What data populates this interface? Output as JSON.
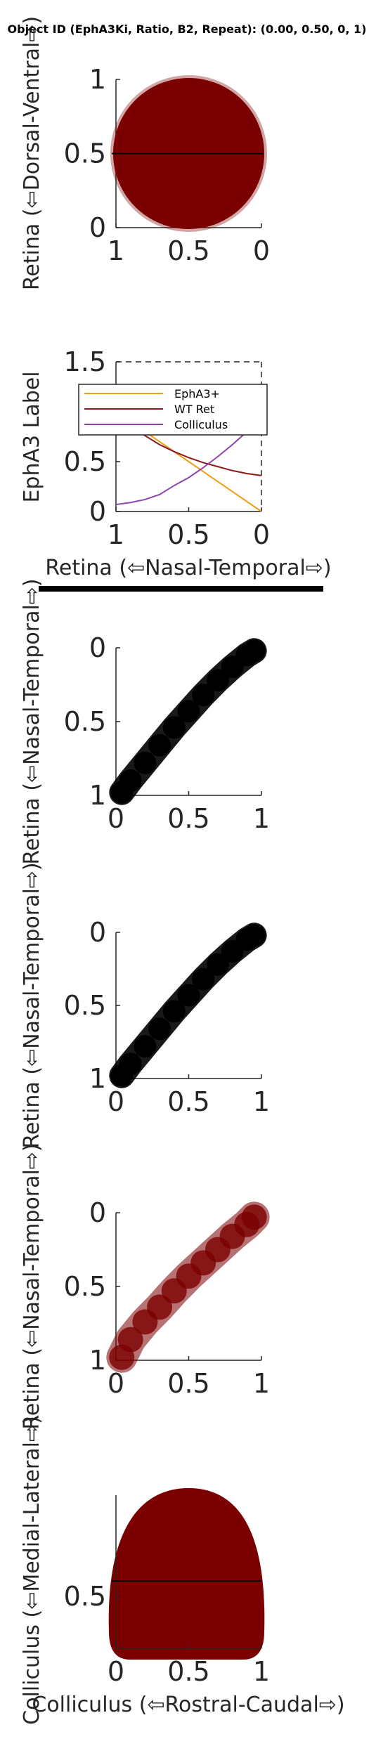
{
  "figure": {
    "title": "Object ID (EphA3Ki, Ratio, B2, Repeat): (0.00, 0.50, 0, 1)"
  },
  "colors": {
    "dark_red": "#7b0000",
    "epha3_plus": "#f39c12",
    "wt_ret": "#8b1a1a",
    "colliculus": "#8e44ad",
    "black": "#000000"
  },
  "chart_data": [
    {
      "id": "retina-field",
      "type": "scatter",
      "title": "",
      "xlabel": "",
      "ylabel": "Retina (⇦Dorsal-Ventral⇨)",
      "xlim": [
        1,
        0
      ],
      "ylim": [
        0,
        1
      ],
      "xticks": [
        "1",
        "0.5",
        "0"
      ],
      "yticks": [
        "1",
        "0.5",
        "0"
      ],
      "shape": "filled disc centred at (0.5, 0.5), radius 0.5",
      "line": {
        "y": 0.5,
        "x": [
          1,
          0
        ]
      }
    },
    {
      "id": "epha3-labels",
      "type": "line",
      "xlabel": "Retina (⇦Nasal-Temporal⇨)",
      "ylabel": "EphA3 Label",
      "xlim": [
        1,
        0
      ],
      "ylim": [
        0,
        1.5
      ],
      "xticks": [
        "1",
        "0.5",
        "0"
      ],
      "yticks": [
        "1.5",
        "1",
        "0.5",
        "0"
      ],
      "legend_position": "top-left",
      "x": [
        1.0,
        0.9,
        0.8,
        0.7,
        0.6,
        0.5,
        0.4,
        0.3,
        0.2,
        0.1,
        0.0
      ],
      "series": [
        {
          "name": "EphA3+",
          "values": [
            1.0,
            0.9,
            0.8,
            0.7,
            0.6,
            0.5,
            0.4,
            0.3,
            0.2,
            0.1,
            0.0
          ]
        },
        {
          "name": "WT Ret",
          "values": [
            1.0,
            0.86,
            0.76,
            0.67,
            0.6,
            0.54,
            0.49,
            0.45,
            0.41,
            0.38,
            0.36
          ]
        },
        {
          "name": "Colliculus",
          "values": [
            0.07,
            0.09,
            0.12,
            0.17,
            0.26,
            0.34,
            0.44,
            0.55,
            0.67,
            0.8,
            1.0
          ]
        }
      ],
      "dashed_lines": [
        {
          "y": 1.5
        },
        {
          "y": 1.0,
          "x_from": 0.1
        }
      ]
    },
    {
      "id": "map-1",
      "type": "scatter",
      "xlabel": "",
      "ylabel": "Retina (⇦Nasal-Temporal⇨)",
      "xlim": [
        0,
        1
      ],
      "ylim": [
        1,
        0
      ],
      "xticks": [
        "0",
        "0.5",
        "1"
      ],
      "yticks": [
        "0",
        "0.5",
        "1"
      ],
      "x": [
        0.04,
        0.1,
        0.2,
        0.3,
        0.4,
        0.5,
        0.6,
        0.7,
        0.8,
        0.9,
        0.95
      ],
      "y": [
        0.98,
        0.9,
        0.78,
        0.66,
        0.54,
        0.43,
        0.32,
        0.22,
        0.13,
        0.05,
        0.02
      ]
    },
    {
      "id": "map-2",
      "type": "scatter",
      "xlabel": "",
      "ylabel": "Retina (⇦Nasal-Temporal⇨)",
      "xlim": [
        0,
        1
      ],
      "ylim": [
        1,
        0
      ],
      "xticks": [
        "0",
        "0.5",
        "1"
      ],
      "yticks": [
        "0",
        "0.5",
        "1"
      ],
      "x": [
        0.04,
        0.1,
        0.2,
        0.3,
        0.4,
        0.5,
        0.6,
        0.7,
        0.8,
        0.9,
        0.95
      ],
      "y": [
        0.98,
        0.9,
        0.78,
        0.66,
        0.54,
        0.43,
        0.32,
        0.22,
        0.13,
        0.05,
        0.02
      ]
    },
    {
      "id": "map-3",
      "type": "scatter",
      "xlabel": "",
      "ylabel": "Retina (⇦Nasal-Temporal⇨)",
      "xlim": [
        0,
        1
      ],
      "ylim": [
        1,
        0
      ],
      "xticks": [
        "0",
        "0.5",
        "1"
      ],
      "yticks": [
        "0",
        "0.5",
        "1"
      ],
      "x": [
        0.04,
        0.1,
        0.2,
        0.3,
        0.4,
        0.5,
        0.6,
        0.7,
        0.8,
        0.9,
        0.95
      ],
      "y": [
        0.98,
        0.86,
        0.74,
        0.64,
        0.53,
        0.43,
        0.34,
        0.25,
        0.16,
        0.08,
        0.03
      ]
    },
    {
      "id": "colliculus-field",
      "type": "scatter",
      "xlabel": "Colliculus (⇦Rostral-Caudal⇨)",
      "ylabel": "Colliculus (⇦Medial-Lateral⇨)",
      "xlim": [
        0,
        1
      ],
      "ylim": [
        0,
        1
      ],
      "xticks": [
        "0",
        "0.5",
        "1"
      ],
      "yticks": [
        "0.5"
      ],
      "shape": "filled dome over x 0 to 1, baseline y 0, apex y 1 at x 0.5",
      "line": {
        "y": 0.44,
        "x": [
          0,
          1
        ]
      }
    }
  ]
}
